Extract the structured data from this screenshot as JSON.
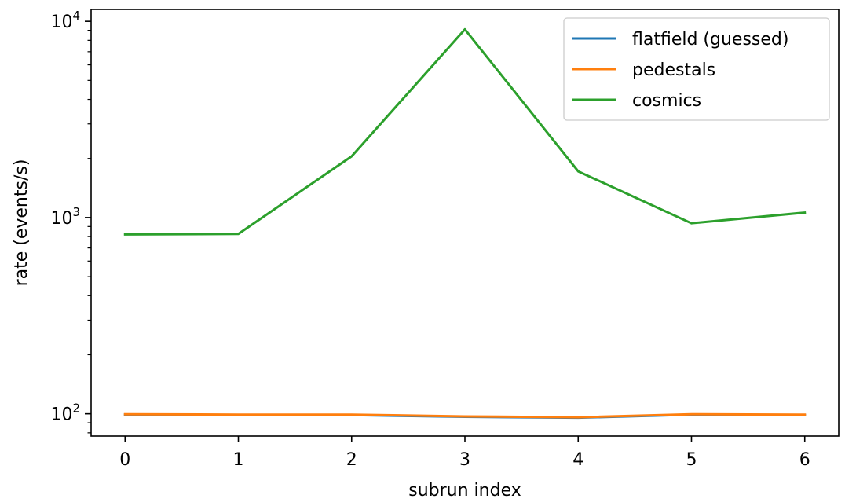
{
  "chart_data": {
    "type": "line",
    "title": "",
    "xlabel": "subrun index",
    "ylabel": "rate (events/s)",
    "yscale": "log",
    "xlim": [
      -0.3,
      6.3
    ],
    "ylim": [
      77,
      11500
    ],
    "x": [
      0,
      1,
      2,
      3,
      4,
      5,
      6
    ],
    "xticks": [
      0,
      1,
      2,
      3,
      4,
      5,
      6
    ],
    "xtick_labels": [
      "0",
      "1",
      "2",
      "3",
      "4",
      "5",
      "6"
    ],
    "yticks": [
      100,
      1000,
      10000
    ],
    "ytick_labels": [
      {
        "base": "10",
        "exp": "2"
      },
      {
        "base": "10",
        "exp": "3"
      },
      {
        "base": "10",
        "exp": "4"
      }
    ],
    "grid": false,
    "legend_position": "top-right",
    "series": [
      {
        "name": "flatfield (guessed)",
        "color": "#1f77b4",
        "values": [
          99,
          98.5,
          98.5,
          96.5,
          95.5,
          99,
          98.5
        ]
      },
      {
        "name": "pedestals",
        "color": "#ff7f0e",
        "values": [
          99.5,
          99,
          99,
          97,
          96,
          99.5,
          99
        ]
      },
      {
        "name": "cosmics",
        "color": "#2ca02c",
        "values": [
          820,
          825,
          2050,
          9100,
          1720,
          935,
          1060
        ]
      }
    ]
  }
}
